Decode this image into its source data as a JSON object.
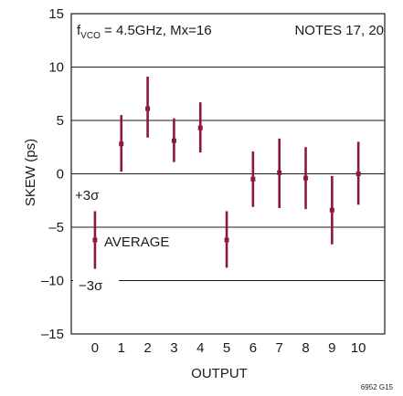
{
  "chart_data": {
    "type": "errorbar",
    "ylabel": "SKEW (ps)",
    "xlabel": "OUTPUT",
    "ylim": [
      -15,
      15
    ],
    "yticks": [
      15,
      10,
      5,
      0,
      -5,
      -10,
      -15
    ],
    "yticklabels": [
      "15",
      "10",
      "5",
      "0",
      "–5",
      "–10",
      "–15"
    ],
    "xlim": [
      -0.9,
      11
    ],
    "x": [
      0,
      1,
      2,
      3,
      4,
      5,
      6,
      7,
      8,
      9,
      10
    ],
    "xticklabels": [
      "0",
      "1",
      "2",
      "3",
      "4",
      "5",
      "6",
      "7",
      "8",
      "9",
      "10"
    ],
    "grid": true,
    "series": [
      {
        "average": [
          -6.2,
          2.8,
          6.1,
          3.1,
          4.3,
          -6.2,
          -0.5,
          0.1,
          -0.4,
          -3.4,
          0.0
        ],
        "plus3sigma": [
          -3.5,
          5.5,
          9.1,
          5.2,
          6.7,
          -3.5,
          2.1,
          3.3,
          2.5,
          -0.2,
          3.0
        ],
        "minus3sigma": [
          -8.9,
          0.2,
          3.4,
          1.1,
          2.0,
          -8.8,
          -3.1,
          -3.2,
          -3.3,
          -6.6,
          -2.9
        ]
      }
    ],
    "annotations": {
      "condition_main": "f",
      "condition_sub": "VCO",
      "condition_rest": " = 4.5GHz, Mx=16",
      "notes": "NOTES 17, 20",
      "plus3sigma_label": "+3σ",
      "average_label": "AVERAGE",
      "minus3sigma_label": "−3σ"
    },
    "bar_color": "#8b1a3a",
    "figure_id": "6952 G15"
  }
}
